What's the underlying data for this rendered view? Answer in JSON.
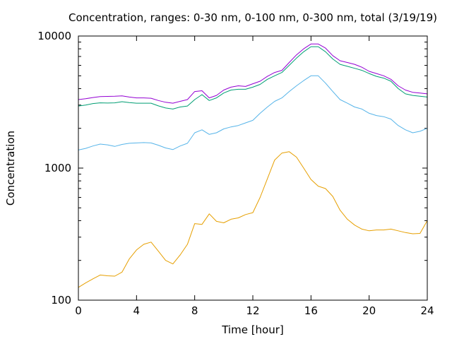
{
  "chart_data": {
    "type": "line",
    "title": "Concentration, ranges: 0-30 nm, 0-100 nm, 0-300 nm, total (3/19/19)",
    "xlabel": "Time [hour]",
    "ylabel": "Concentration",
    "xlim": [
      0,
      24
    ],
    "ylim": [
      100,
      10000
    ],
    "yscale": "log",
    "xticks": [
      0,
      4,
      8,
      12,
      16,
      20,
      24
    ],
    "yticks": [
      100,
      1000,
      10000
    ],
    "grid": false,
    "legend": "none",
    "x": [
      0,
      0.5,
      1,
      1.5,
      2,
      2.5,
      3,
      3.5,
      4,
      4.5,
      5,
      5.5,
      6,
      6.5,
      7,
      7.5,
      8,
      8.5,
      9,
      9.5,
      10,
      10.5,
      11,
      11.5,
      12,
      12.5,
      13,
      13.5,
      14,
      14.5,
      15,
      15.5,
      16,
      16.5,
      17,
      17.5,
      18,
      18.5,
      19,
      19.5,
      20,
      20.5,
      21,
      21.5,
      22,
      22.5,
      23,
      23.5,
      24
    ],
    "series": [
      {
        "color": "#e69f00",
        "values": [
          125,
          135,
          145,
          155,
          153,
          152,
          163,
          205,
          240,
          265,
          275,
          235,
          200,
          188,
          220,
          265,
          380,
          375,
          450,
          395,
          385,
          410,
          420,
          445,
          460,
          600,
          830,
          1150,
          1300,
          1330,
          1210,
          1000,
          820,
          730,
          700,
          610,
          480,
          410,
          370,
          345,
          335,
          340,
          340,
          345,
          335,
          325,
          318,
          320,
          400
        ]
      },
      {
        "color": "#56b4e9",
        "values": [
          1370,
          1410,
          1470,
          1520,
          1500,
          1460,
          1510,
          1540,
          1550,
          1560,
          1550,
          1490,
          1420,
          1380,
          1470,
          1540,
          1850,
          1950,
          1800,
          1850,
          1980,
          2050,
          2100,
          2200,
          2300,
          2600,
          2900,
          3200,
          3400,
          3800,
          4200,
          4600,
          5000,
          5000,
          4400,
          3800,
          3300,
          3100,
          2900,
          2800,
          2600,
          2500,
          2450,
          2350,
          2100,
          1950,
          1850,
          1900,
          2000
        ]
      },
      {
        "color": "#009e73",
        "values": [
          2950,
          3000,
          3080,
          3120,
          3110,
          3120,
          3180,
          3130,
          3100,
          3100,
          3100,
          2960,
          2850,
          2800,
          2900,
          2950,
          3300,
          3600,
          3250,
          3400,
          3700,
          3900,
          3950,
          3950,
          4100,
          4300,
          4700,
          5000,
          5300,
          6000,
          6800,
          7600,
          8300,
          8300,
          7600,
          6700,
          6100,
          5900,
          5700,
          5500,
          5200,
          4950,
          4800,
          4550,
          4000,
          3650,
          3550,
          3500,
          3450
        ]
      },
      {
        "color": "#9400d3",
        "values": [
          3300,
          3350,
          3420,
          3480,
          3490,
          3500,
          3520,
          3450,
          3400,
          3400,
          3380,
          3250,
          3150,
          3100,
          3200,
          3300,
          3800,
          3850,
          3400,
          3550,
          3900,
          4100,
          4200,
          4150,
          4350,
          4550,
          4950,
          5300,
          5500,
          6300,
          7200,
          8000,
          8700,
          8700,
          8100,
          7100,
          6500,
          6300,
          6100,
          5800,
          5400,
          5200,
          5000,
          4700,
          4200,
          3900,
          3750,
          3700,
          3650
        ]
      }
    ]
  }
}
